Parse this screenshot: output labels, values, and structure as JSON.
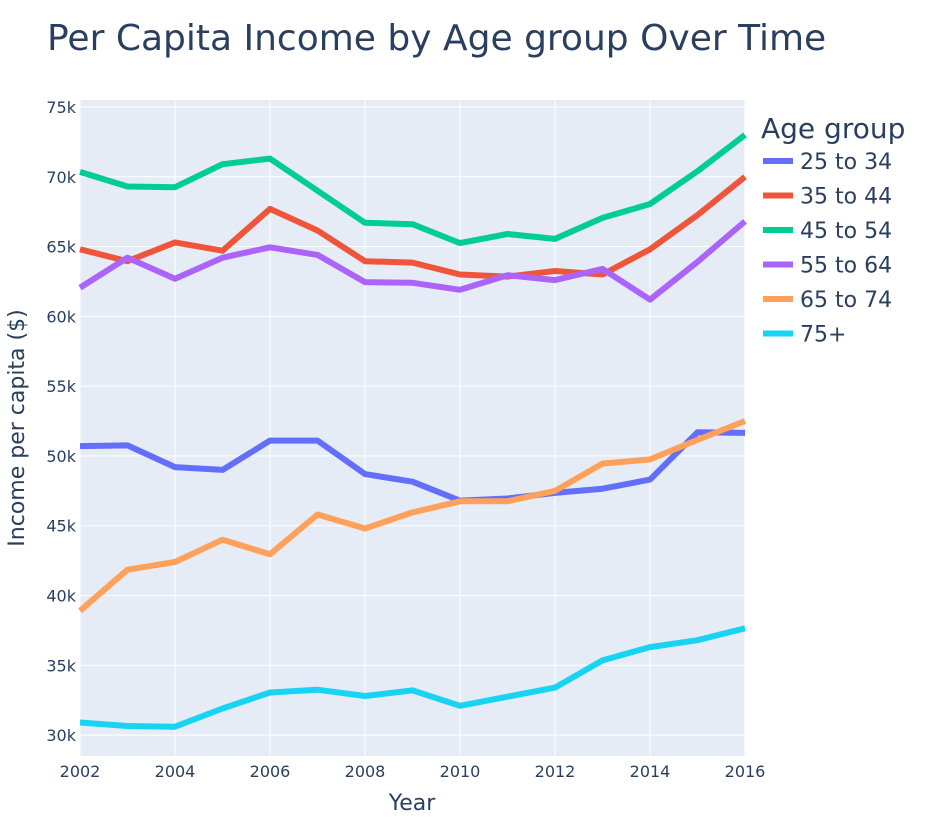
{
  "chart_data": {
    "type": "line",
    "title": "Per Capita Income by Age group Over Time",
    "xlabel": "Year",
    "ylabel": "Income per capita ($)",
    "xlim": [
      2002,
      2016
    ],
    "ylim": [
      28500,
      75500
    ],
    "x_ticks": [
      2002,
      2004,
      2006,
      2008,
      2010,
      2012,
      2014,
      2016
    ],
    "y_ticks": [
      30000,
      35000,
      40000,
      45000,
      50000,
      55000,
      60000,
      65000,
      70000,
      75000
    ],
    "y_tick_labels": [
      "30k",
      "35k",
      "40k",
      "45k",
      "50k",
      "55k",
      "60k",
      "65k",
      "70k",
      "75k"
    ],
    "grid": true,
    "plot_background": "#e5ecf6",
    "legend_title": "Age group",
    "legend_position": "right",
    "x": [
      2002,
      2003,
      2004,
      2005,
      2006,
      2007,
      2008,
      2009,
      2010,
      2011,
      2012,
      2013,
      2014,
      2015,
      2016
    ],
    "series": [
      {
        "name": "25 to 34",
        "color": "#636efa",
        "values": [
          50700,
          50750,
          49200,
          49000,
          51100,
          51100,
          48700,
          48150,
          46800,
          46950,
          47350,
          47650,
          48300,
          51700,
          51650
        ]
      },
      {
        "name": "35 to 44",
        "color": "#ef553b",
        "values": [
          64800,
          63950,
          65300,
          64700,
          67700,
          66150,
          63950,
          63850,
          63000,
          62850,
          63250,
          63000,
          64800,
          67250,
          70000
        ]
      },
      {
        "name": "45 to 54",
        "color": "#00cc96",
        "values": [
          70350,
          69300,
          69250,
          70900,
          71300,
          69000,
          66700,
          66600,
          65250,
          65900,
          65550,
          67050,
          68050,
          70400,
          73000
        ]
      },
      {
        "name": "55 to 64",
        "color": "#ab63fa",
        "values": [
          62050,
          64200,
          62700,
          64200,
          64950,
          64400,
          62450,
          62400,
          61900,
          62950,
          62600,
          63400,
          61200,
          63900,
          66800
        ]
      },
      {
        "name": "65 to 74",
        "color": "#ffa15a",
        "values": [
          38900,
          41850,
          42400,
          44000,
          42950,
          45800,
          44800,
          45950,
          46750,
          46750,
          47500,
          49450,
          49750,
          51150,
          52500
        ]
      },
      {
        "name": "75+",
        "color": "#19d3f3",
        "values": [
          30900,
          30650,
          30600,
          31900,
          33050,
          33250,
          32800,
          33200,
          32100,
          32750,
          33400,
          35350,
          36300,
          36800,
          37650
        ]
      }
    ]
  }
}
